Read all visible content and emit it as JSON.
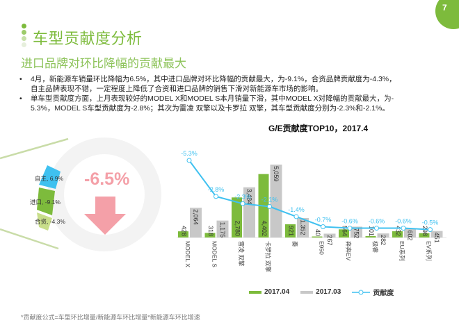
{
  "page": {
    "number": "7"
  },
  "header": {
    "title": "车型贡献度分析",
    "subtitle": "进口品牌对环比降幅的贡献最大"
  },
  "bullets": [
    {
      "line1": "4月，新能源车销量环比降幅为6.5%，其中进口品牌对环比降幅的贡献最大，为-9.1%，合资品牌贡献度为-4.3%，",
      "line2": "自主品牌表现不错，一定程度上降低了合资和进口品牌的销售下滑对新能源车市场的影响。"
    },
    {
      "line1": "单车型贡献度方面，上月表现较好的MODEL X和MODEL S本月销量下滑，其中MODEL X对降幅的贡献最大，为-",
      "line2": "5.3%，MODEL S车型贡献度为-2.8%；其次为雷凌 双擎以及卡罗拉 双擎，其车型贡献度分别为-2.3%和-2.1%。"
    }
  ],
  "summary": {
    "total_change": "-6.5%",
    "segments": [
      {
        "label": "自主, 6.9%",
        "color": "#3fc1f0"
      },
      {
        "label": "进口, -9.1%",
        "color": "#7dbb3c"
      },
      {
        "label": "合资, -4.3%",
        "color": "#c8de8a"
      }
    ]
  },
  "legend": {
    "apr": "2017.04",
    "mar": "2017.03",
    "contrib": "贡献度"
  },
  "colors": {
    "apr": "#7dbb3c",
    "mar": "#c8c8c8",
    "contrib": "#3fc1f0",
    "accent": "#7dbb3c",
    "down": "#f4a0a8"
  },
  "footnote": "*贡献度公式=车型环比增量/新能源车环比增量*新能源车环比增速",
  "chart_data": {
    "type": "bar",
    "title": "G/E贡献度TOP10，2017.4",
    "categories": [
      "MODEL X",
      "MODEL S",
      "雷凌 双擎",
      "卡罗拉 双擎",
      "秦",
      "E950",
      "奔奔EV",
      "极睿",
      "EU系列",
      "EV系列"
    ],
    "series": [
      {
        "name": "2017.04",
        "type": "bar",
        "values": [
          428,
          318,
          2780,
          4402,
          921,
          40,
          564,
          101,
          432,
          298
        ]
      },
      {
        "name": "2017.03",
        "type": "bar",
        "values": [
          2064,
          1175,
          3484,
          5059,
          1352,
          267,
          752,
          282,
          602,
          451
        ]
      },
      {
        "name": "贡献度",
        "type": "line",
        "values": [
          -5.3,
          -2.8,
          -2.3,
          -2.1,
          -1.4,
          -0.7,
          -0.6,
          -0.6,
          -0.6,
          -0.5
        ],
        "labels": [
          "-5.3%",
          "-2.8%",
          "-2.3%",
          "-2.1%",
          "-1.4%",
          "-0.7%",
          "-0.6%",
          "-0.6%",
          "-0.6%",
          "-0.5%"
        ]
      }
    ],
    "bar_labels_apr": [
      "428",
      "318",
      "2,780",
      "4,402",
      "921",
      "40",
      "564",
      "101",
      "432",
      "298"
    ],
    "bar_labels_mar": [
      "2,064",
      "1,175",
      "3,484",
      "5,059",
      "1,352",
      "267",
      "752",
      "282",
      "602",
      "451"
    ],
    "legend_position": "bottom",
    "grid": false
  }
}
